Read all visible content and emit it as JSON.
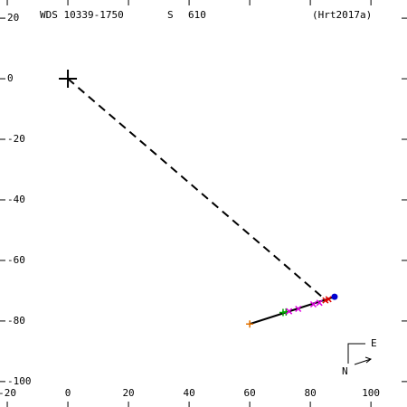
{
  "chart_data": {
    "type": "scatter",
    "title": "WDS 10339-1750",
    "label_s": "S",
    "label_num": "610",
    "reference": "(Hrt2017a)",
    "compass_e": "E",
    "compass_n": "N",
    "xlim": [
      -22.4,
      111.9
    ],
    "ylim": [
      -108.4,
      26
    ],
    "xticks": [
      -20,
      0,
      20,
      40,
      60,
      80,
      100
    ],
    "yticks": [
      20,
      0,
      -20,
      -40,
      -60,
      -80,
      -100
    ],
    "primary": {
      "x": [
        0
      ],
      "y": [
        0
      ],
      "color": "#000000"
    },
    "dashed_line": {
      "x": [
        0,
        85
      ],
      "y": [
        0,
        -73
      ],
      "color": "#000000"
    },
    "fit_line": {
      "x": [
        60,
        88
      ],
      "y": [
        -81,
        -72
      ],
      "color": "#000000"
    },
    "series": [
      {
        "color": "#e07000",
        "marker": "plus",
        "x": [
          60
        ],
        "y": [
          -81
        ]
      },
      {
        "color": "#00a000",
        "marker": "plus",
        "x": [
          71,
          72
        ],
        "y": [
          -77.2,
          -77
        ]
      },
      {
        "color": "#e000e0",
        "marker": "x",
        "x": [
          73,
          76,
          81,
          83
        ],
        "y": [
          -76.8,
          -76,
          -74.5,
          -74
        ]
      },
      {
        "color": "#e00000",
        "marker": "x",
        "x": [
          85,
          86
        ],
        "y": [
          -73.2,
          -72.8
        ]
      },
      {
        "color": "#0000d0",
        "marker": "dot",
        "x": [
          88
        ],
        "y": [
          -72
        ]
      }
    ]
  }
}
